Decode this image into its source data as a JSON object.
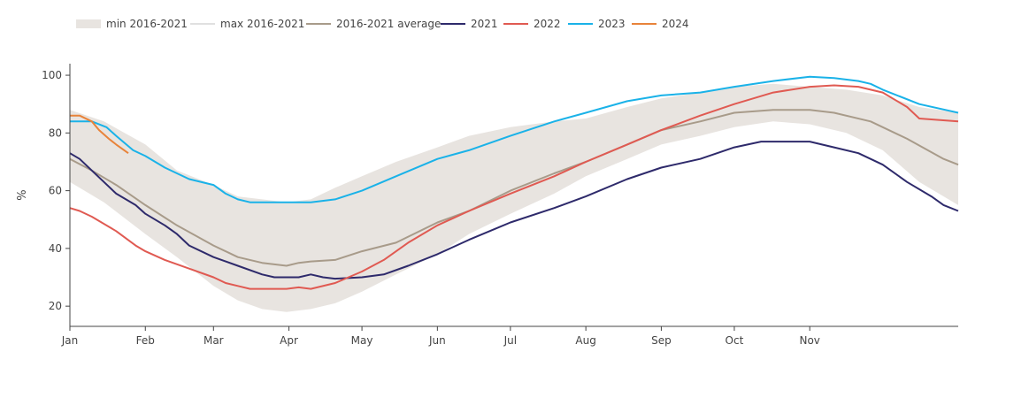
{
  "chart_data": {
    "type": "line",
    "xlabel": "",
    "ylabel": "%",
    "ylim": [
      13,
      104
    ],
    "xlim": [
      1,
      366
    ],
    "y_ticks": [
      20,
      40,
      60,
      80,
      100
    ],
    "month_ticks": [
      {
        "label": "Jan",
        "day": 1
      },
      {
        "label": "Feb",
        "day": 32
      },
      {
        "label": "Mar",
        "day": 60
      },
      {
        "label": "Apr",
        "day": 91
      },
      {
        "label": "May",
        "day": 121
      },
      {
        "label": "Jun",
        "day": 152
      },
      {
        "label": "Jul",
        "day": 182
      },
      {
        "label": "Aug",
        "day": 213
      },
      {
        "label": "Sep",
        "day": 244
      },
      {
        "label": "Oct",
        "day": 274
      },
      {
        "label": "Nov",
        "day": 305
      }
    ],
    "legend_position": "top-left",
    "legend": [
      {
        "label": "min 2016-2021",
        "color": "#e8e4e0",
        "style": "band"
      },
      {
        "label": "max 2016-2021",
        "color": "#e0e0e0",
        "style": "line"
      },
      {
        "label": "2016-2021 average",
        "color": "#a89b8a",
        "style": "line"
      },
      {
        "label": "2021",
        "color": "#2e2a6b",
        "style": "line"
      },
      {
        "label": "2022",
        "color": "#e05a52",
        "style": "line"
      },
      {
        "label": "2023",
        "color": "#1ab2e8",
        "style": "line"
      },
      {
        "label": "2024",
        "color": "#e8833a",
        "style": "line"
      }
    ],
    "band": {
      "name": "min/max 2016-2021",
      "color": "#e8e4e0",
      "x": [
        1,
        15,
        32,
        45,
        60,
        70,
        80,
        90,
        100,
        110,
        121,
        135,
        152,
        165,
        182,
        200,
        213,
        230,
        244,
        260,
        274,
        290,
        305,
        320,
        335,
        350,
        366
      ],
      "min": [
        63,
        56,
        45,
        37,
        27,
        22,
        19,
        18,
        19,
        21,
        25,
        31,
        38,
        45,
        52,
        59,
        65,
        71,
        76,
        79,
        82,
        84,
        83,
        80,
        74,
        63,
        55
      ],
      "max": [
        88,
        84,
        76,
        67,
        62,
        58,
        57,
        56,
        57,
        61,
        65,
        70,
        75,
        79,
        82,
        84,
        85,
        89,
        92,
        94,
        96,
        97,
        96,
        95,
        93,
        89,
        87
      ]
    },
    "series": [
      {
        "name": "2016-2021 average",
        "color": "#a89b8a",
        "x": [
          1,
          10,
          20,
          32,
          45,
          60,
          70,
          80,
          90,
          95,
          100,
          110,
          121,
          135,
          152,
          165,
          182,
          200,
          213,
          230,
          244,
          260,
          274,
          290,
          305,
          315,
          330,
          345,
          360,
          366
        ],
        "values": [
          71,
          67,
          62,
          55,
          48,
          41,
          37,
          35,
          34,
          35,
          35.5,
          36,
          39,
          42,
          49,
          53,
          60,
          66,
          70,
          76,
          81,
          84,
          87,
          88,
          88,
          87,
          84,
          78,
          71,
          69
        ]
      },
      {
        "name": "2021",
        "color": "#2e2a6b",
        "x": [
          1,
          5,
          10,
          20,
          28,
          32,
          40,
          45,
          50,
          60,
          70,
          80,
          85,
          90,
          95,
          100,
          105,
          110,
          121,
          130,
          140,
          152,
          165,
          182,
          200,
          213,
          230,
          244,
          260,
          274,
          285,
          290,
          305,
          315,
          325,
          335,
          345,
          355,
          360,
          366
        ],
        "values": [
          73,
          71,
          67,
          59,
          55,
          52,
          48,
          45,
          41,
          37,
          34,
          31,
          30,
          30,
          30,
          31,
          30,
          29.5,
          30,
          31,
          34,
          38,
          43,
          49,
          54,
          58,
          64,
          68,
          71,
          75,
          77,
          77,
          77,
          75,
          73,
          69,
          63,
          58,
          55,
          53
        ]
      },
      {
        "name": "2022",
        "color": "#e05a52",
        "x": [
          1,
          5,
          10,
          20,
          28,
          32,
          40,
          50,
          60,
          65,
          70,
          75,
          80,
          90,
          95,
          100,
          110,
          121,
          130,
          140,
          152,
          165,
          182,
          200,
          213,
          230,
          244,
          260,
          274,
          290,
          305,
          315,
          325,
          335,
          345,
          350,
          366
        ],
        "values": [
          54,
          53,
          51,
          46,
          41,
          39,
          36,
          33,
          30,
          28,
          27,
          26,
          26,
          26,
          26.5,
          26,
          28,
          32,
          36,
          42,
          48,
          53,
          59,
          65,
          70,
          76,
          81,
          86,
          90,
          94,
          96,
          96.5,
          96,
          94,
          89,
          85,
          84
        ]
      },
      {
        "name": "2023",
        "color": "#1ab2e8",
        "x": [
          1,
          10,
          16,
          20,
          27,
          32,
          40,
          45,
          50,
          60,
          65,
          70,
          75,
          80,
          90,
          95,
          100,
          110,
          121,
          135,
          152,
          165,
          182,
          200,
          213,
          230,
          244,
          260,
          274,
          290,
          305,
          315,
          325,
          330,
          335,
          350,
          366
        ],
        "values": [
          84,
          84,
          82,
          79,
          74,
          72,
          68,
          66,
          64,
          62,
          59,
          57,
          56,
          56,
          56,
          56,
          56,
          57,
          60,
          65,
          71,
          74,
          79,
          84,
          87,
          91,
          93,
          94,
          96,
          98,
          99.5,
          99,
          98,
          97,
          95,
          90,
          87
        ]
      },
      {
        "name": "2024",
        "color": "#e8833a",
        "x": [
          1,
          5,
          10,
          13,
          17,
          20,
          25
        ],
        "values": [
          86,
          86,
          84,
          81,
          78,
          76,
          73
        ]
      }
    ]
  }
}
